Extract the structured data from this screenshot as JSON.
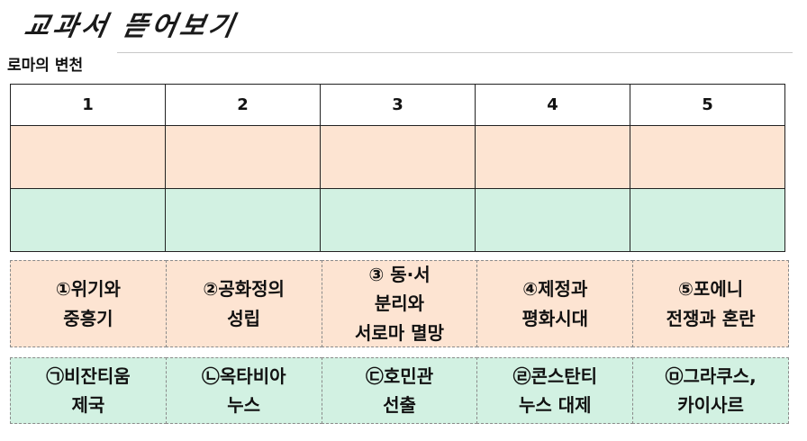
{
  "header": {
    "title": "교과서 뜯어보기",
    "subtitle": "로마의 변천"
  },
  "answer_table": {
    "columns": [
      "1",
      "2",
      "3",
      "4",
      "5"
    ],
    "row_colors": [
      "#fde4d2",
      "#d2f1e2"
    ]
  },
  "event_options": [
    {
      "text": "①위기와\n중흥기"
    },
    {
      "text": "②공화정의\n성립"
    },
    {
      "text": "③ 동·서\n분리와\n서로마 멸망"
    },
    {
      "text": "④제정과\n평화시대"
    },
    {
      "text": "⑤포에니\n전쟁과 혼란"
    }
  ],
  "figure_options": [
    {
      "text": "㉠비잔티움\n제국"
    },
    {
      "text": "㉡옥타비아\n누스"
    },
    {
      "text": "㉢호민관\n선출"
    },
    {
      "text": "㉣콘스탄티\n누스 대제"
    },
    {
      "text": "㉤그라쿠스,\n카이사르"
    }
  ]
}
